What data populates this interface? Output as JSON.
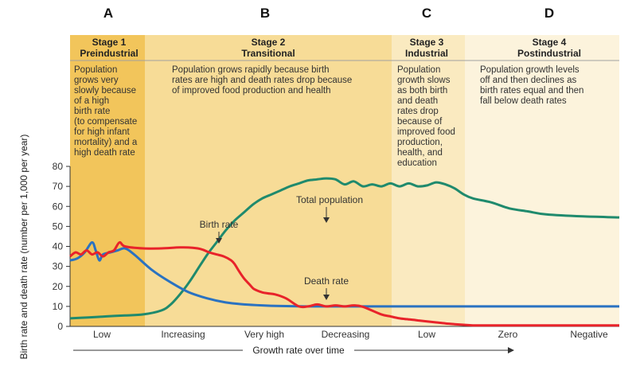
{
  "chart_data": {
    "type": "line",
    "title": "",
    "xlabel": "Growth rate over time",
    "ylabel": "Birth rate and death rate (number per 1,000 per year)",
    "ylim": [
      0,
      80
    ],
    "yticks": [
      0,
      10,
      20,
      30,
      40,
      50,
      60,
      70,
      80
    ],
    "x_categories": [
      "Low",
      "Increasing",
      "Very high",
      "Decreasing",
      "Low",
      "Zero",
      "Negative"
    ],
    "stage_letters": [
      "A",
      "B",
      "C",
      "D"
    ],
    "stages": [
      {
        "title": [
          "Stage 1",
          "Preindustrial"
        ],
        "color": "#f2c55b",
        "description": [
          "Population",
          "grows very",
          "slowly because",
          "of a high",
          "birth rate",
          "(to compensate",
          "for high infant",
          "mortality) and a",
          "high death rate"
        ]
      },
      {
        "title": [
          "Stage 2",
          "Transitional"
        ],
        "color": "#f7dc97",
        "description": [
          "Population grows rapidly because birth",
          "rates are high and death rates drop because",
          "of improved food production and health"
        ]
      },
      {
        "title": [
          "Stage 3",
          "Industrial"
        ],
        "color": "#faeac0",
        "description": [
          "Population",
          "growth slows",
          "as both birth",
          "and death",
          "rates drop",
          "because of",
          "improved food",
          "production,",
          "health, and",
          "education"
        ]
      },
      {
        "title": [
          "Stage 4",
          "Postindustrial"
        ],
        "color": "#fcf3dc",
        "description": [
          "Population growth levels",
          "off and then declines as",
          "birth rates equal and then",
          "fall below death rates"
        ]
      }
    ],
    "annotations": {
      "total_population": "Total population",
      "birth_rate": "Birth rate",
      "death_rate": "Death rate"
    },
    "series": [
      {
        "name": "Birth rate",
        "color": "#e8232a",
        "x": [
          0,
          0.03,
          0.06,
          0.09,
          0.12,
          0.15,
          0.18,
          0.21,
          0.24,
          0.27,
          0.3,
          0.4,
          0.5,
          0.6,
          0.67,
          0.72,
          0.76,
          0.8,
          0.84,
          0.88,
          0.9,
          0.92,
          0.95,
          0.98,
          1.0,
          1.02,
          1.05,
          1.08,
          1.12,
          1.18,
          1.25,
          1.3,
          1.35,
          1.4,
          1.45,
          1.5,
          1.55,
          1.6,
          1.7,
          1.75,
          1.8,
          1.85,
          1.9,
          1.95,
          2.0,
          2.05,
          2.1,
          2.15,
          2.2,
          2.3,
          2.4,
          2.5,
          2.6,
          2.7,
          2.8,
          2.9,
          3.0
        ],
        "y": [
          35,
          37,
          36,
          38,
          36,
          37,
          35,
          37,
          38,
          42,
          40,
          39,
          39,
          39.5,
          39.3,
          38.5,
          37,
          36,
          35,
          33,
          31,
          28,
          24,
          21,
          19,
          18,
          17,
          16.5,
          16,
          14,
          10,
          10,
          11,
          10,
          10.5,
          10,
          10.5,
          9.8,
          6,
          5,
          4,
          3.5,
          3,
          2.5,
          2,
          1.5,
          1.1,
          0.8,
          0.5,
          0.5,
          0.5,
          0.5,
          0.5,
          0.5,
          0.5,
          0.5,
          0.5
        ]
      },
      {
        "name": "Death rate",
        "color": "#2a72c1",
        "x": [
          0,
          0.04,
          0.08,
          0.12,
          0.14,
          0.16,
          0.18,
          0.22,
          0.26,
          0.3,
          0.35,
          0.45,
          0.55,
          0.65,
          0.75,
          0.85,
          0.95,
          1.05,
          1.15,
          1.3,
          1.5,
          1.7,
          1.9,
          2.1,
          2.3,
          2.5,
          2.7,
          3.0
        ],
        "y": [
          33,
          34,
          37,
          42,
          38,
          33,
          36,
          37,
          38,
          39,
          36,
          28,
          22,
          17,
          14,
          12,
          11,
          10.5,
          10.2,
          10,
          10,
          10,
          10,
          10,
          10,
          10,
          10,
          10
        ]
      },
      {
        "name": "Total population",
        "color": "#1f8a6d",
        "x": [
          0,
          0.1,
          0.2,
          0.3,
          0.4,
          0.5,
          0.55,
          0.6,
          0.65,
          0.7,
          0.75,
          0.8,
          0.85,
          0.9,
          0.95,
          1.0,
          1.05,
          1.1,
          1.15,
          1.2,
          1.25,
          1.3,
          1.35,
          1.4,
          1.45,
          1.5,
          1.55,
          1.6,
          1.65,
          1.7,
          1.75,
          1.8,
          1.85,
          1.9,
          1.95,
          2.0,
          2.05,
          2.1,
          2.15,
          2.2,
          2.3,
          2.4,
          2.5,
          2.6,
          2.8,
          3.0
        ],
        "y": [
          4,
          4.5,
          5,
          5.5,
          6,
          8,
          11,
          16,
          22,
          29,
          36,
          42,
          48,
          53,
          57,
          61,
          64,
          66,
          68,
          70,
          71.5,
          73,
          73.5,
          74,
          73.5,
          71,
          72.5,
          70,
          71,
          70,
          71.5,
          70,
          71.5,
          70,
          70.5,
          72,
          71,
          69,
          66,
          64,
          62,
          59,
          57.5,
          56,
          55,
          54.5
        ]
      }
    ]
  }
}
